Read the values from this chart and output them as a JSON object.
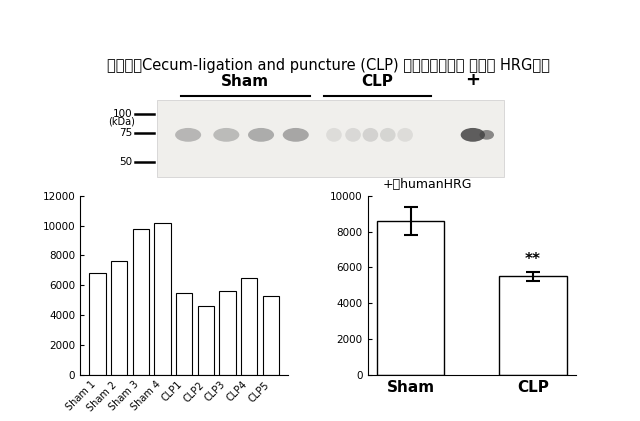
{
  "title": "マウスのCecum-ligation and puncture (CLP) モデルにおける 血漿中 HRG動態",
  "title_fontsize": 10.5,
  "bar_categories": [
    "Sham 1",
    "Sham 2",
    "Sham 3",
    "Sham 4",
    "CLP1",
    "CLP2",
    "CLP3",
    "CLP4",
    "CLP5"
  ],
  "bar_values": [
    6800,
    7600,
    9800,
    10200,
    5500,
    4600,
    5600,
    6500,
    5300
  ],
  "bar_ylim": [
    0,
    12000
  ],
  "bar_yticks": [
    0,
    2000,
    4000,
    6000,
    8000,
    10000,
    12000
  ],
  "summary_categories": [
    "Sham",
    "CLP"
  ],
  "summary_means": [
    8600,
    5500
  ],
  "summary_errors": [
    800,
    250
  ],
  "summary_ylim": [
    0,
    10000
  ],
  "summary_yticks": [
    0,
    2000,
    4000,
    6000,
    8000,
    10000
  ],
  "wb_label_kda": "(kDa)",
  "wb_markers": [
    "100",
    "75",
    "50"
  ],
  "wb_group_sham": "Sham",
  "wb_group_clp": "CLP",
  "wb_plus_label": "+",
  "wb_plus_annotation": "+：humanHRG",
  "significance_label": "**",
  "bar_color": "white",
  "bar_edgecolor": "black",
  "background_color": "white",
  "text_color": "black"
}
